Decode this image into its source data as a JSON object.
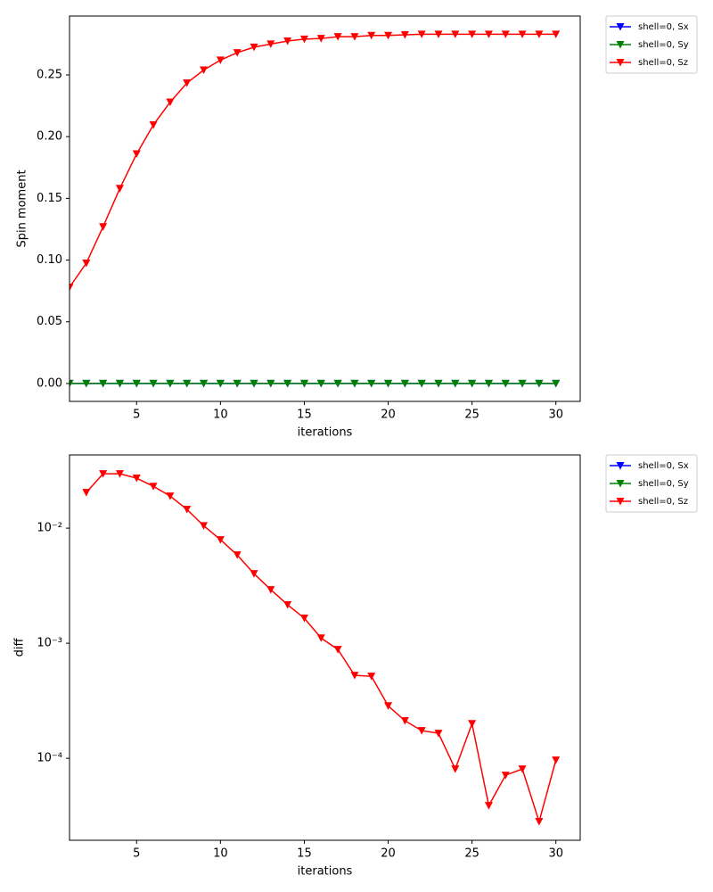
{
  "chart_data": [
    {
      "type": "line",
      "xlabel": "iterations",
      "ylabel": "Spin moment",
      "x": [
        1,
        2,
        3,
        4,
        5,
        6,
        7,
        8,
        9,
        10,
        11,
        12,
        13,
        14,
        15,
        16,
        17,
        18,
        19,
        20,
        21,
        22,
        23,
        24,
        25,
        26,
        27,
        28,
        29,
        30
      ],
      "series": [
        {
          "name": "shell=0, Sx",
          "color": "#0000ff",
          "values": [
            0,
            0,
            0,
            0,
            0,
            0,
            0,
            0,
            0,
            0,
            0,
            0,
            0,
            0,
            0,
            0,
            0,
            0,
            0,
            0,
            0,
            0,
            0,
            0,
            0,
            0,
            0,
            0,
            0,
            0
          ]
        },
        {
          "name": "shell=0, Sy",
          "color": "#008000",
          "values": [
            0,
            0,
            0,
            0,
            0,
            0,
            0,
            0,
            0,
            0,
            0,
            0,
            0,
            0,
            0,
            0,
            0,
            0,
            0,
            0,
            0,
            0,
            0,
            0,
            0,
            0,
            0,
            0,
            0,
            0
          ]
        },
        {
          "name": "shell=0, Sz",
          "color": "#ff0000",
          "values": [
            0.078,
            0.0975,
            0.127,
            0.158,
            0.186,
            0.2095,
            0.228,
            0.2435,
            0.254,
            0.262,
            0.268,
            0.2725,
            0.275,
            0.2775,
            0.279,
            0.2795,
            0.281,
            0.281,
            0.282,
            0.282,
            0.2825,
            0.283,
            0.283,
            0.283,
            0.283,
            0.283,
            0.283,
            0.283,
            0.283,
            0.283
          ]
        }
      ],
      "xlim": [
        1,
        31.45
      ],
      "ylim": [
        -0.0145,
        0.2977
      ],
      "xticks": [
        5,
        10,
        15,
        20,
        25,
        30
      ],
      "yticks": [
        {
          "value": 0,
          "label": "0.00"
        },
        {
          "value": 0.05,
          "label": "0.05"
        },
        {
          "value": 0.1,
          "label": "0.10"
        },
        {
          "value": 0.15,
          "label": "0.15"
        },
        {
          "value": 0.2,
          "label": "0.20"
        },
        {
          "value": 0.25,
          "label": "0.25"
        }
      ],
      "legend": "outside upper right",
      "grid": false,
      "log_y": false
    },
    {
      "type": "line",
      "xlabel": "iterations",
      "ylabel": "diff",
      "x": [
        2,
        3,
        4,
        5,
        6,
        7,
        8,
        9,
        10,
        11,
        12,
        13,
        14,
        15,
        16,
        17,
        18,
        19,
        20,
        21,
        22,
        23,
        24,
        25,
        26,
        27,
        28,
        29,
        30
      ],
      "series": [
        {
          "name": "shell=0, Sx",
          "color": "#0000ff",
          "values": [
            null,
            null,
            null,
            null,
            null,
            null,
            null,
            null,
            null,
            null,
            null,
            null,
            null,
            null,
            null,
            null,
            null,
            null,
            null,
            null,
            null,
            null,
            null,
            null,
            null,
            null,
            null,
            null,
            null
          ]
        },
        {
          "name": "shell=0, Sy",
          "color": "#008000",
          "values": [
            null,
            null,
            null,
            null,
            null,
            null,
            null,
            null,
            null,
            null,
            null,
            null,
            null,
            null,
            null,
            null,
            null,
            null,
            null,
            null,
            null,
            null,
            null,
            null,
            null,
            null,
            null,
            null,
            null
          ]
        },
        {
          "name": "shell=0, Sz",
          "color": "#ff0000",
          "values": [
            0.0204,
            0.0297,
            0.0297,
            0.0272,
            0.0231,
            0.019,
            0.01456,
            0.0105,
            0.00793,
            0.00585,
            0.00402,
            0.00292,
            0.00216,
            0.00165,
            0.00111,
            0.000883,
            0.000526,
            0.000516,
            0.000286,
            0.000212,
            0.000174,
            0.000165,
            8.07e-05,
            0.0002,
            3.88e-05,
            7.13e-05,
            8.07e-05,
            2.82e-05,
            9.65e-05
          ]
        }
      ],
      "xlim": [
        1,
        31.45
      ],
      "ylim": [
        1.94e-05,
        0.0433
      ],
      "xticks": [
        5,
        10,
        15,
        20,
        25,
        30
      ],
      "yticks": [
        {
          "value": 0.0001,
          "label": "10⁻⁴"
        },
        {
          "value": 0.001,
          "label": "10⁻³"
        },
        {
          "value": 0.01,
          "label": "10⁻²"
        }
      ],
      "legend": "outside upper right",
      "grid": false,
      "log_y": true
    }
  ]
}
